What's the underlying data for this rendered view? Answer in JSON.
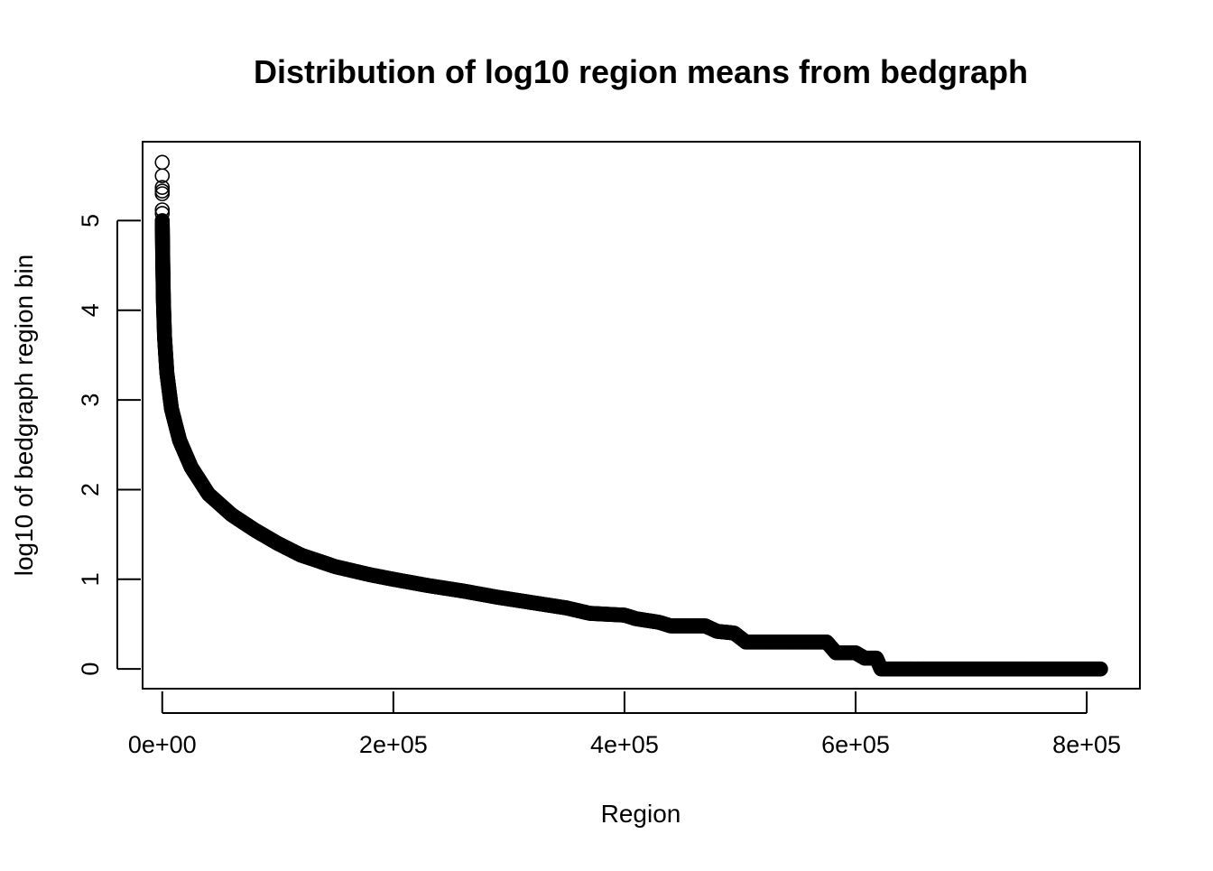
{
  "chart_data": {
    "type": "scatter",
    "title": "Distribution of log10 region means from bedgraph",
    "xlabel": "Region",
    "ylabel": "log10 of bedgraph region bin",
    "xlim": [
      -17000,
      846000
    ],
    "ylim": [
      -0.22,
      5.88
    ],
    "x_ticks": [
      0,
      200000,
      400000,
      600000,
      800000
    ],
    "x_tick_labels": [
      "0e+00",
      "2e+05",
      "4e+05",
      "6e+05",
      "8e+05"
    ],
    "y_ticks": [
      0,
      1,
      2,
      3,
      4,
      5
    ],
    "y_tick_labels": [
      "0",
      "1",
      "2",
      "3",
      "4",
      "5"
    ],
    "grid": false,
    "legend": "none",
    "marker": "open-circle",
    "point_color": "#000000",
    "n_points": 812000,
    "top_outliers": [
      {
        "x": 0,
        "y": 5.65
      },
      {
        "x": 0,
        "y": 5.5
      },
      {
        "x": 0,
        "y": 5.37
      },
      {
        "x": 0,
        "y": 5.33
      },
      {
        "x": 0,
        "y": 5.3
      },
      {
        "x": 0,
        "y": 5.12
      },
      {
        "x": 0,
        "y": 5.08
      }
    ],
    "curve": [
      {
        "x": 0,
        "y": 5.0
      },
      {
        "x": 500,
        "y": 4.5
      },
      {
        "x": 1000,
        "y": 4.1
      },
      {
        "x": 2000,
        "y": 3.7
      },
      {
        "x": 4000,
        "y": 3.3
      },
      {
        "x": 8000,
        "y": 2.9
      },
      {
        "x": 15000,
        "y": 2.55
      },
      {
        "x": 25000,
        "y": 2.25
      },
      {
        "x": 40000,
        "y": 1.95
      },
      {
        "x": 60000,
        "y": 1.72
      },
      {
        "x": 80000,
        "y": 1.55
      },
      {
        "x": 100000,
        "y": 1.4
      },
      {
        "x": 120000,
        "y": 1.27
      },
      {
        "x": 150000,
        "y": 1.14
      },
      {
        "x": 180000,
        "y": 1.05
      },
      {
        "x": 200000,
        "y": 1.0
      },
      {
        "x": 230000,
        "y": 0.93
      },
      {
        "x": 260000,
        "y": 0.87
      },
      {
        "x": 290000,
        "y": 0.8
      },
      {
        "x": 320000,
        "y": 0.74
      },
      {
        "x": 350000,
        "y": 0.68
      },
      {
        "x": 370000,
        "y": 0.62
      },
      {
        "x": 400000,
        "y": 0.6
      },
      {
        "x": 410000,
        "y": 0.56
      },
      {
        "x": 430000,
        "y": 0.52
      },
      {
        "x": 440000,
        "y": 0.48
      },
      {
        "x": 470000,
        "y": 0.48
      },
      {
        "x": 480000,
        "y": 0.42
      },
      {
        "x": 495000,
        "y": 0.4
      },
      {
        "x": 505000,
        "y": 0.3
      },
      {
        "x": 575000,
        "y": 0.3
      },
      {
        "x": 583000,
        "y": 0.18
      },
      {
        "x": 600000,
        "y": 0.18
      },
      {
        "x": 608000,
        "y": 0.12
      },
      {
        "x": 618000,
        "y": 0.12
      },
      {
        "x": 622000,
        "y": 0.0
      },
      {
        "x": 812000,
        "y": 0.0
      }
    ]
  }
}
